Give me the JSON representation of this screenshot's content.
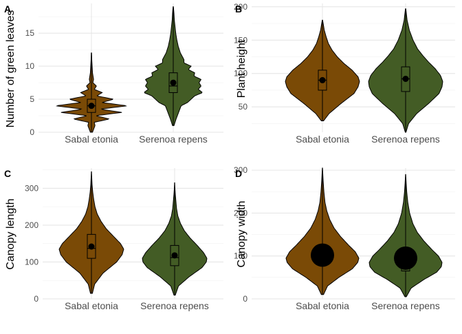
{
  "colors": {
    "sabal": "#7a4a06",
    "serenoa": "#435c25",
    "grid_major": "#e6e6e6",
    "grid_minor": "#f2f2f2"
  },
  "chart_data": [
    {
      "panel": "A",
      "type": "violin",
      "ylabel": "Number of green leaves",
      "ylim": [
        0,
        19.5
      ],
      "yticks": [
        0,
        5,
        10,
        15
      ],
      "categories": [
        "Sabal etonia",
        "Serenoa repens"
      ],
      "series": [
        {
          "category": "Sabal etonia",
          "color": "#7a4a06",
          "min": 0,
          "max": 12,
          "q1": 3,
          "median": 4,
          "q3": 5,
          "mean": 4.0,
          "profile": [
            [
              0,
              0.03
            ],
            [
              1,
              0.1
            ],
            [
              1.5,
              0.08
            ],
            [
              2,
              0.5
            ],
            [
              2.5,
              0.12
            ],
            [
              3,
              0.85
            ],
            [
              3.5,
              0.25
            ],
            [
              4,
              1.0
            ],
            [
              4.5,
              0.3
            ],
            [
              5,
              0.62
            ],
            [
              5.5,
              0.15
            ],
            [
              6,
              0.3
            ],
            [
              6.5,
              0.08
            ],
            [
              7,
              0.14
            ],
            [
              7.5,
              0.04
            ],
            [
              8,
              0.06
            ],
            [
              9,
              0.03
            ],
            [
              10,
              0.02
            ],
            [
              11,
              0.01
            ],
            [
              12,
              0.005
            ]
          ]
        },
        {
          "category": "Serenoa repens",
          "color": "#435c25",
          "min": 1,
          "max": 19,
          "q1": 6,
          "median": 7,
          "q3": 9,
          "mean": 7.5,
          "profile": [
            [
              1,
              0.02
            ],
            [
              2,
              0.08
            ],
            [
              3,
              0.15
            ],
            [
              4,
              0.22
            ],
            [
              4.5,
              0.4
            ],
            [
              5,
              0.5
            ],
            [
              5.5,
              0.6
            ],
            [
              6,
              0.82
            ],
            [
              6.5,
              0.7
            ],
            [
              7,
              0.78
            ],
            [
              7.5,
              0.72
            ],
            [
              8,
              0.78
            ],
            [
              8.5,
              0.58
            ],
            [
              9,
              0.6
            ],
            [
              9.5,
              0.42
            ],
            [
              10,
              0.5
            ],
            [
              10.5,
              0.3
            ],
            [
              11,
              0.3
            ],
            [
              12,
              0.2
            ],
            [
              13,
              0.14
            ],
            [
              14,
              0.1
            ],
            [
              15,
              0.07
            ],
            [
              16,
              0.05
            ],
            [
              17,
              0.03
            ],
            [
              18,
              0.02
            ],
            [
              19,
              0.005
            ]
          ]
        }
      ]
    },
    {
      "panel": "B",
      "type": "violin",
      "ylabel": "Plant height",
      "ylim": [
        12,
        205
      ],
      "yticks": [
        50,
        100,
        150,
        200
      ],
      "categories": [
        "Sabal etonia",
        "Serenoa repens"
      ],
      "series": [
        {
          "category": "Sabal etonia",
          "color": "#7a4a06",
          "min": 29,
          "max": 180,
          "q1": 75,
          "median": 90,
          "q3": 105,
          "mean": 90,
          "profile": [
            [
              29,
              0.03
            ],
            [
              40,
              0.18
            ],
            [
              55,
              0.5
            ],
            [
              70,
              0.85
            ],
            [
              80,
              0.96
            ],
            [
              88,
              1.0
            ],
            [
              95,
              0.96
            ],
            [
              105,
              0.8
            ],
            [
              115,
              0.58
            ],
            [
              125,
              0.4
            ],
            [
              135,
              0.26
            ],
            [
              145,
              0.16
            ],
            [
              155,
              0.1
            ],
            [
              165,
              0.05
            ],
            [
              175,
              0.02
            ],
            [
              180,
              0.005
            ]
          ]
        },
        {
          "category": "Serenoa repens",
          "color": "#435c25",
          "min": 12,
          "max": 197,
          "q1": 73,
          "median": 92,
          "q3": 110,
          "mean": 92,
          "profile": [
            [
              12,
              0.01
            ],
            [
              25,
              0.08
            ],
            [
              40,
              0.3
            ],
            [
              55,
              0.62
            ],
            [
              70,
              0.9
            ],
            [
              80,
              0.98
            ],
            [
              88,
              1.0
            ],
            [
              97,
              0.94
            ],
            [
              107,
              0.8
            ],
            [
              117,
              0.62
            ],
            [
              127,
              0.46
            ],
            [
              137,
              0.32
            ],
            [
              150,
              0.2
            ],
            [
              165,
              0.1
            ],
            [
              180,
              0.04
            ],
            [
              197,
              0.005
            ]
          ]
        }
      ]
    },
    {
      "panel": "C",
      "type": "violin",
      "ylabel": "Canopy length",
      "ylim": [
        0,
        355
      ],
      "yticks": [
        0,
        100,
        200,
        300
      ],
      "categories": [
        "Sabal etonia",
        "Serenoa repens"
      ],
      "series": [
        {
          "category": "Sabal etonia",
          "color": "#7a4a06",
          "min": 15,
          "max": 345,
          "q1": 110,
          "median": 137,
          "q3": 175,
          "mean": 142,
          "profile": [
            [
              15,
              0.03
            ],
            [
              40,
              0.1
            ],
            [
              70,
              0.36
            ],
            [
              100,
              0.78
            ],
            [
              120,
              0.95
            ],
            [
              135,
              1.0
            ],
            [
              150,
              0.9
            ],
            [
              170,
              0.68
            ],
            [
              190,
              0.46
            ],
            [
              210,
              0.3
            ],
            [
              230,
              0.18
            ],
            [
              250,
              0.11
            ],
            [
              270,
              0.07
            ],
            [
              290,
              0.04
            ],
            [
              310,
              0.02
            ],
            [
              330,
              0.01
            ],
            [
              345,
              0.003
            ]
          ]
        },
        {
          "category": "Serenoa repens",
          "color": "#435c25",
          "min": 10,
          "max": 315,
          "q1": 90,
          "median": 112,
          "q3": 145,
          "mean": 118,
          "profile": [
            [
              10,
              0.02
            ],
            [
              35,
              0.12
            ],
            [
              60,
              0.45
            ],
            [
              85,
              0.85
            ],
            [
              100,
              0.98
            ],
            [
              110,
              1.0
            ],
            [
              125,
              0.9
            ],
            [
              145,
              0.7
            ],
            [
              165,
              0.48
            ],
            [
              185,
              0.3
            ],
            [
              205,
              0.18
            ],
            [
              225,
              0.1
            ],
            [
              245,
              0.06
            ],
            [
              265,
              0.04
            ],
            [
              285,
              0.02
            ],
            [
              300,
              0.01
            ],
            [
              315,
              0.003
            ]
          ]
        }
      ]
    },
    {
      "panel": "D",
      "type": "violin",
      "ylabel": "Canopy width",
      "ylim": [
        0,
        305
      ],
      "yticks": [
        0,
        100,
        200,
        300
      ],
      "categories": [
        "Sabal etonia",
        "Serenoa repens"
      ],
      "series": [
        {
          "category": "Sabal etonia",
          "color": "#7a4a06",
          "min": 10,
          "max": 305,
          "q1": 80,
          "median": 100,
          "q3": 125,
          "mean": 102,
          "profile": [
            [
              10,
              0.03
            ],
            [
              30,
              0.14
            ],
            [
              50,
              0.45
            ],
            [
              70,
              0.82
            ],
            [
              85,
              0.97
            ],
            [
              95,
              1.0
            ],
            [
              110,
              0.9
            ],
            [
              125,
              0.72
            ],
            [
              145,
              0.5
            ],
            [
              165,
              0.32
            ],
            [
              185,
              0.2
            ],
            [
              205,
              0.12
            ],
            [
              225,
              0.07
            ],
            [
              250,
              0.04
            ],
            [
              275,
              0.02
            ],
            [
              305,
              0.003
            ]
          ]
        },
        {
          "category": "Serenoa repens",
          "color": "#435c25",
          "min": 5,
          "max": 290,
          "q1": 65,
          "median": 85,
          "q3": 115,
          "mean": 95,
          "profile": [
            [
              5,
              0.02
            ],
            [
              25,
              0.15
            ],
            [
              45,
              0.5
            ],
            [
              62,
              0.85
            ],
            [
              75,
              0.98
            ],
            [
              85,
              1.0
            ],
            [
              100,
              0.9
            ],
            [
              115,
              0.72
            ],
            [
              135,
              0.5
            ],
            [
              155,
              0.32
            ],
            [
              175,
              0.2
            ],
            [
              200,
              0.11
            ],
            [
              225,
              0.06
            ],
            [
              250,
              0.03
            ],
            [
              270,
              0.015
            ],
            [
              290,
              0.003
            ]
          ]
        }
      ]
    }
  ]
}
